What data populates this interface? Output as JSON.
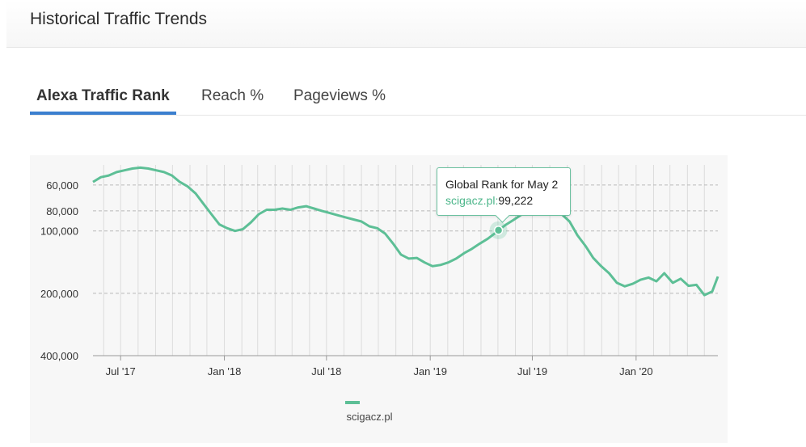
{
  "header": {
    "title": "Historical Traffic Trends"
  },
  "tabs": [
    {
      "label": "Alexa Traffic Rank",
      "active": true
    },
    {
      "label": "Reach %",
      "active": false
    },
    {
      "label": "Pageviews %",
      "active": false
    }
  ],
  "tooltip": {
    "title": "Global Rank for May 2",
    "site": "scigacz.pl:",
    "value": "99,222"
  },
  "colors": {
    "series": "#5dbf96",
    "tab_accent": "#3b7fcf",
    "grid": "#b9b9b9"
  },
  "chart_data": {
    "type": "line",
    "title": "",
    "xlabel": "",
    "ylabel": "",
    "y_scale": "log",
    "y_reversed": true,
    "grid": true,
    "legend_position": "bottom-center",
    "x_ticks": [
      {
        "date": "2017-07-01",
        "label": "Jul '17"
      },
      {
        "date": "2018-01-01",
        "label": "Jan '18"
      },
      {
        "date": "2018-07-01",
        "label": "Jul '18"
      },
      {
        "date": "2019-01-01",
        "label": "Jan '19"
      },
      {
        "date": "2019-07-01",
        "label": "Jul '19"
      },
      {
        "date": "2020-01-01",
        "label": "Jan '20"
      }
    ],
    "y_ticks": [
      {
        "value": 60000,
        "label": "60,000"
      },
      {
        "value": 80000,
        "label": "80,000"
      },
      {
        "value": 100000,
        "label": "100,000"
      },
      {
        "value": 200000,
        "label": "200,000"
      },
      {
        "value": 400000,
        "label": "400,000"
      }
    ],
    "xlim": [
      "2017-05-13",
      "2020-05-25"
    ],
    "ylim": [
      400000,
      48000
    ],
    "series": [
      {
        "name": "scigacz.pl",
        "highlight": {
          "date": "2019-05-02",
          "value": 99222
        },
        "points": [
          [
            "2017-05-13",
            58000
          ],
          [
            "2017-05-27",
            55000
          ],
          [
            "2017-06-10",
            54000
          ],
          [
            "2017-06-24",
            52000
          ],
          [
            "2017-07-08",
            51000
          ],
          [
            "2017-07-22",
            50000
          ],
          [
            "2017-08-05",
            49500
          ],
          [
            "2017-08-19",
            50000
          ],
          [
            "2017-09-02",
            51000
          ],
          [
            "2017-09-16",
            52000
          ],
          [
            "2017-09-30",
            54000
          ],
          [
            "2017-10-14",
            58000
          ],
          [
            "2017-10-28",
            61000
          ],
          [
            "2017-11-11",
            66000
          ],
          [
            "2017-11-25",
            74000
          ],
          [
            "2017-12-09",
            83000
          ],
          [
            "2017-12-23",
            93000
          ],
          [
            "2018-01-06",
            97000
          ],
          [
            "2018-01-20",
            100000
          ],
          [
            "2018-02-03",
            98000
          ],
          [
            "2018-02-17",
            91000
          ],
          [
            "2018-03-03",
            83000
          ],
          [
            "2018-03-17",
            79000
          ],
          [
            "2018-03-31",
            79000
          ],
          [
            "2018-04-14",
            78000
          ],
          [
            "2018-04-28",
            79000
          ],
          [
            "2018-05-12",
            77000
          ],
          [
            "2018-05-26",
            76000
          ],
          [
            "2018-06-09",
            78000
          ],
          [
            "2018-06-23",
            80000
          ],
          [
            "2018-07-07",
            82000
          ],
          [
            "2018-07-21",
            84000
          ],
          [
            "2018-08-04",
            86000
          ],
          [
            "2018-08-18",
            88000
          ],
          [
            "2018-09-01",
            90000
          ],
          [
            "2018-09-15",
            95000
          ],
          [
            "2018-09-29",
            97000
          ],
          [
            "2018-10-13",
            103000
          ],
          [
            "2018-10-27",
            115000
          ],
          [
            "2018-11-10",
            130000
          ],
          [
            "2018-11-24",
            136000
          ],
          [
            "2018-12-08",
            135000
          ],
          [
            "2018-12-22",
            142000
          ],
          [
            "2019-01-05",
            148000
          ],
          [
            "2019-01-19",
            146000
          ],
          [
            "2019-02-02",
            142000
          ],
          [
            "2019-02-16",
            136000
          ],
          [
            "2019-03-02",
            128000
          ],
          [
            "2019-03-16",
            122000
          ],
          [
            "2019-03-30",
            115000
          ],
          [
            "2019-04-13",
            109000
          ],
          [
            "2019-04-27",
            102000
          ],
          [
            "2019-05-02",
            99222
          ],
          [
            "2019-05-16",
            93000
          ],
          [
            "2019-05-30",
            88000
          ],
          [
            "2019-06-13",
            83000
          ],
          [
            "2019-06-27",
            80000
          ],
          [
            "2019-07-11",
            79000
          ],
          [
            "2019-07-25",
            80000
          ],
          [
            "2019-08-08",
            81000
          ],
          [
            "2019-08-22",
            83000
          ],
          [
            "2019-09-05",
            90000
          ],
          [
            "2019-09-19",
            105000
          ],
          [
            "2019-10-03",
            118000
          ],
          [
            "2019-10-17",
            135000
          ],
          [
            "2019-10-31",
            148000
          ],
          [
            "2019-11-14",
            160000
          ],
          [
            "2019-11-28",
            178000
          ],
          [
            "2019-12-12",
            185000
          ],
          [
            "2019-12-26",
            180000
          ],
          [
            "2020-01-09",
            172000
          ],
          [
            "2020-01-23",
            168000
          ],
          [
            "2020-02-06",
            175000
          ],
          [
            "2020-02-20",
            160000
          ],
          [
            "2020-03-06",
            178000
          ],
          [
            "2020-03-20",
            170000
          ],
          [
            "2020-04-03",
            184000
          ],
          [
            "2020-04-17",
            182000
          ],
          [
            "2020-05-01",
            204000
          ],
          [
            "2020-05-15",
            196000
          ],
          [
            "2020-05-25",
            166000
          ]
        ]
      }
    ]
  }
}
